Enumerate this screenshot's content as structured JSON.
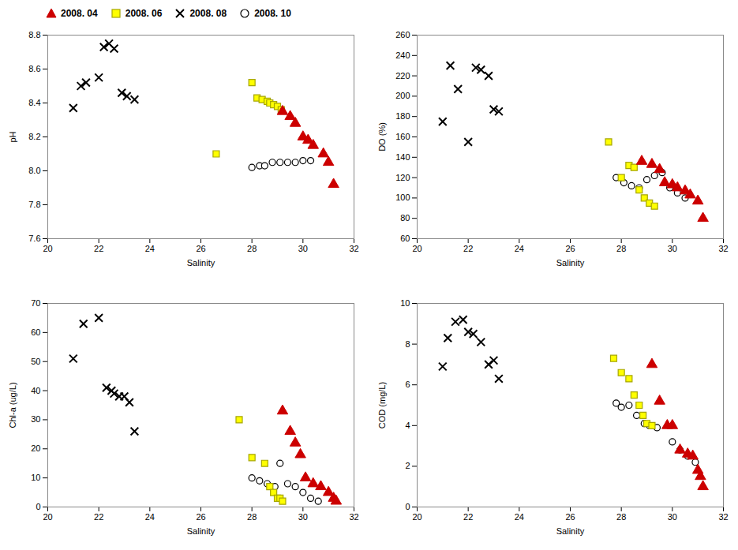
{
  "chart_data": [
    {
      "type": "scatter",
      "xlabel": "Salinity",
      "ylabel": "pH",
      "xlim": [
        20,
        32
      ],
      "xticks": [
        20,
        22,
        24,
        26,
        28,
        30,
        32
      ],
      "ylim": [
        7.6,
        8.8
      ],
      "yticks": [
        7.6,
        7.8,
        {
          "value": 8.0,
          "label": "8.0"
        },
        8.2,
        8.4,
        8.6,
        8.8
      ],
      "grid": false,
      "legend": "lower center",
      "series": [
        {
          "name": "2008. 04",
          "color": "#CC0000",
          "marker": "triangle",
          "x": [
            29.2,
            29.5,
            29.7,
            30.0,
            30.2,
            30.4,
            30.8,
            31.0,
            31.2
          ],
          "values": [
            8.35,
            8.32,
            8.28,
            8.2,
            8.18,
            8.15,
            8.1,
            8.05,
            7.92
          ]
        },
        {
          "name": "2008. 06",
          "color": "#FFFF00",
          "marker": "square",
          "x": [
            26.6,
            28.0,
            28.2,
            28.4,
            28.6,
            28.7,
            28.85,
            29.0,
            29.15
          ],
          "values": [
            8.1,
            8.52,
            8.43,
            8.42,
            8.41,
            8.4,
            8.39,
            8.38,
            8.36
          ]
        },
        {
          "name": "2008. 08",
          "color": "#000000",
          "marker": "x",
          "x": [
            21.0,
            21.3,
            21.5,
            22.0,
            22.2,
            22.4,
            22.6,
            22.9,
            23.1,
            23.4
          ],
          "values": [
            8.37,
            8.5,
            8.52,
            8.55,
            8.73,
            8.75,
            8.72,
            8.46,
            8.44,
            8.42
          ]
        },
        {
          "name": "2008. 10",
          "color": "#000000",
          "marker": "circle-open",
          "x": [
            28.0,
            28.3,
            28.5,
            28.8,
            29.1,
            29.4,
            29.7,
            30.0,
            30.3
          ],
          "values": [
            8.02,
            8.03,
            8.03,
            8.05,
            8.05,
            8.05,
            8.05,
            8.06,
            8.06
          ]
        }
      ]
    },
    {
      "type": "scatter",
      "xlabel": "Salinity",
      "ylabel": "DO (%)",
      "xlim": [
        20,
        32
      ],
      "xticks": [
        20,
        22,
        24,
        26,
        28,
        30,
        32
      ],
      "ylim": [
        60,
        260
      ],
      "yticks": [
        60,
        80,
        100,
        120,
        140,
        160,
        180,
        200,
        220,
        240,
        260
      ],
      "grid": false,
      "series": [
        {
          "name": "2008. 04",
          "color": "#CC0000",
          "marker": "triangle",
          "x": [
            28.8,
            29.2,
            29.5,
            29.7,
            30.0,
            30.2,
            30.5,
            30.7,
            31.0,
            31.2
          ],
          "values": [
            136,
            133,
            128,
            115,
            113,
            110,
            107,
            103,
            97,
            80
          ]
        },
        {
          "name": "2008. 06",
          "color": "#FFFF00",
          "marker": "square",
          "x": [
            27.5,
            28.0,
            28.3,
            28.5,
            28.7,
            28.9,
            29.1,
            29.3
          ],
          "values": [
            155,
            120,
            132,
            130,
            108,
            100,
            95,
            92
          ]
        },
        {
          "name": "2008. 08",
          "color": "#000000",
          "marker": "x",
          "x": [
            21.0,
            21.3,
            21.6,
            22.0,
            22.3,
            22.5,
            22.8,
            23.0,
            23.2
          ],
          "values": [
            175,
            230,
            207,
            155,
            228,
            226,
            220,
            187,
            185
          ]
        },
        {
          "name": "2008. 10",
          "color": "#000000",
          "marker": "circle-open",
          "x": [
            27.8,
            28.1,
            28.4,
            28.7,
            29.0,
            29.3,
            29.6,
            29.9,
            30.2,
            30.5
          ],
          "values": [
            120,
            115,
            112,
            110,
            118,
            122,
            125,
            110,
            105,
            100
          ]
        }
      ]
    },
    {
      "type": "scatter",
      "xlabel": "Salinity",
      "ylabel": "Chl-a (ug/L)",
      "xlim": [
        20,
        32
      ],
      "xticks": [
        20,
        22,
        24,
        26,
        28,
        30,
        32
      ],
      "ylim": [
        0,
        70
      ],
      "yticks": [
        0,
        10,
        20,
        30,
        40,
        50,
        60,
        70
      ],
      "grid": false,
      "series": [
        {
          "name": "2008. 04",
          "color": "#CC0000",
          "marker": "triangle",
          "x": [
            29.2,
            29.5,
            29.7,
            29.9,
            30.1,
            30.4,
            30.7,
            31.0,
            31.2,
            31.3
          ],
          "values": [
            33,
            26,
            22,
            18,
            10,
            8,
            7,
            5,
            3,
            2
          ]
        },
        {
          "name": "2008. 06",
          "color": "#FFFF00",
          "marker": "square",
          "x": [
            27.5,
            28.0,
            28.5,
            28.7,
            28.85,
            29.0,
            29.1,
            29.2
          ],
          "values": [
            30,
            17,
            15,
            7,
            5,
            3,
            3,
            2
          ]
        },
        {
          "name": "2008. 08",
          "color": "#000000",
          "marker": "x",
          "x": [
            21.0,
            21.4,
            22.0,
            22.3,
            22.5,
            22.6,
            22.8,
            23.0,
            23.2,
            23.4
          ],
          "values": [
            51,
            63,
            65,
            41,
            40,
            39,
            38,
            38,
            36,
            26
          ]
        },
        {
          "name": "2008. 10",
          "color": "#000000",
          "marker": "circle-open",
          "x": [
            28.0,
            28.3,
            28.6,
            28.9,
            29.1,
            29.4,
            29.7,
            30.0,
            30.3,
            30.6
          ],
          "values": [
            10,
            9,
            8,
            7,
            15,
            8,
            7,
            5,
            3,
            2
          ]
        }
      ]
    },
    {
      "type": "scatter",
      "xlabel": "Salinity",
      "ylabel": "COD (mg/L)",
      "xlim": [
        20,
        32
      ],
      "xticks": [
        20,
        22,
        24,
        26,
        28,
        30,
        32
      ],
      "ylim": [
        0,
        10
      ],
      "yticks": [
        0,
        2,
        4,
        6,
        8,
        10
      ],
      "grid": false,
      "series": [
        {
          "name": "2008. 04",
          "color": "#CC0000",
          "marker": "triangle",
          "x": [
            29.2,
            29.5,
            29.8,
            30.0,
            30.3,
            30.6,
            30.8,
            31.0,
            31.1,
            31.2
          ],
          "values": [
            7.0,
            5.2,
            4.0,
            4.0,
            2.8,
            2.6,
            2.5,
            1.8,
            1.5,
            1.0
          ]
        },
        {
          "name": "2008. 06",
          "color": "#FFFF00",
          "marker": "square",
          "x": [
            27.7,
            28.0,
            28.3,
            28.5,
            28.7,
            28.85,
            29.0,
            29.2
          ],
          "values": [
            7.3,
            6.6,
            6.3,
            5.5,
            5.0,
            4.5,
            4.1,
            4.0
          ]
        },
        {
          "name": "2008. 08",
          "color": "#000000",
          "marker": "x",
          "x": [
            21.0,
            21.2,
            21.5,
            21.8,
            22.0,
            22.2,
            22.5,
            22.8,
            23.0,
            23.2
          ],
          "values": [
            6.9,
            8.3,
            9.1,
            9.2,
            8.6,
            8.5,
            8.1,
            7.0,
            7.2,
            6.3
          ]
        },
        {
          "name": "2008. 10",
          "color": "#000000",
          "marker": "circle-open",
          "x": [
            27.8,
            28.0,
            28.3,
            28.6,
            28.9,
            29.1,
            29.4,
            30.0,
            30.3,
            30.6,
            30.9
          ],
          "values": [
            5.1,
            4.9,
            5.0,
            4.5,
            4.1,
            4.0,
            3.9,
            3.2,
            2.8,
            2.5,
            2.2
          ]
        }
      ]
    }
  ]
}
